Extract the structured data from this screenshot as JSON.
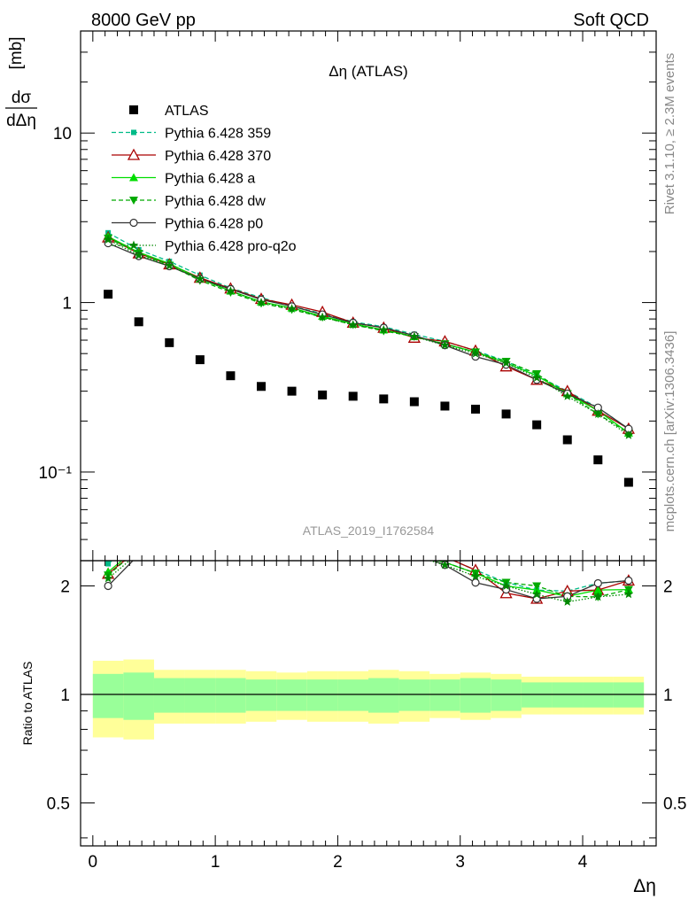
{
  "header": {
    "left": "8000 GeV pp",
    "right": "Soft QCD"
  },
  "side_labels": {
    "rivet": "Rivet 3.1.10, ≥ 2.3M events",
    "site": "mcplots.cern.ch [arXiv:1306.3436]"
  },
  "chart_data": {
    "type": "scatter",
    "title": "Δη (ATLAS)",
    "analysis_label": "ATLAS_2019_I1762584",
    "xlabel": "Δη",
    "ylabel_top": "dσ/dΔη [mb]",
    "ylabel_bottom": "Ratio to ATLAS",
    "xlim": [
      -0.1,
      4.6
    ],
    "ylim": [
      0.03,
      40
    ],
    "ylog": true,
    "ratio_ylim": [
      0.38,
      2.35
    ],
    "ratio_ylog": true,
    "x_ticks": [
      "0",
      "1",
      "2",
      "3",
      "4"
    ],
    "y_ticks": [
      "10⁻¹",
      "1",
      "10"
    ],
    "ratio_ticks": [
      "0.5",
      "1",
      "2"
    ],
    "legend_position": "top-left",
    "x": [
      0.125,
      0.375,
      0.625,
      0.875,
      1.125,
      1.375,
      1.625,
      1.875,
      2.125,
      2.375,
      2.625,
      2.875,
      3.125,
      3.375,
      3.625,
      3.875,
      4.125,
      4.375
    ],
    "x_edges": [
      0.0,
      0.25,
      0.5,
      0.75,
      1.0,
      1.25,
      1.5,
      1.75,
      2.0,
      2.25,
      2.5,
      2.75,
      3.0,
      3.25,
      3.5,
      3.75,
      4.0,
      4.25,
      4.5
    ],
    "data": {
      "name": "ATLAS",
      "color": "#000000",
      "values": [
        1.12,
        0.77,
        0.58,
        0.46,
        0.37,
        0.32,
        0.3,
        0.285,
        0.28,
        0.27,
        0.26,
        0.245,
        0.235,
        0.22,
        0.19,
        0.155,
        0.118,
        0.087
      ],
      "band_inner": [
        0.14,
        0.15,
        0.11,
        0.11,
        0.11,
        0.1,
        0.1,
        0.1,
        0.1,
        0.11,
        0.1,
        0.1,
        0.11,
        0.1,
        0.08,
        0.08,
        0.08,
        0.08
      ],
      "band_outer": [
        0.24,
        0.25,
        0.17,
        0.17,
        0.17,
        0.16,
        0.15,
        0.16,
        0.16,
        0.17,
        0.16,
        0.14,
        0.15,
        0.14,
        0.12,
        0.12,
        0.12,
        0.12
      ],
      "band_inner_color": "#99ff99",
      "band_outer_color": "#ffff99"
    },
    "series": [
      {
        "name": "Pythia 6.428 359",
        "color": "#00bb88",
        "dash": "5,3",
        "marker": "square-small",
        "values": [
          2.58,
          2.05,
          1.75,
          1.45,
          1.22,
          1.07,
          0.95,
          0.86,
          0.77,
          0.72,
          0.65,
          0.59,
          0.52,
          0.45,
          0.37,
          0.3,
          0.24,
          0.18
        ]
      },
      {
        "name": "Pythia 6.428 370",
        "color": "#aa0000",
        "dash": "",
        "marker": "triangle-open",
        "values": [
          2.42,
          1.95,
          1.68,
          1.4,
          1.21,
          1.05,
          0.97,
          0.88,
          0.76,
          0.71,
          0.62,
          0.59,
          0.52,
          0.42,
          0.35,
          0.3,
          0.23,
          0.18
        ]
      },
      {
        "name": "Pythia 6.428 a",
        "color": "#00dd00",
        "dash": "",
        "marker": "triangle-filled",
        "values": [
          2.45,
          1.98,
          1.7,
          1.38,
          1.17,
          1.01,
          0.93,
          0.83,
          0.75,
          0.69,
          0.63,
          0.57,
          0.51,
          0.44,
          0.37,
          0.29,
          0.23,
          0.17
        ]
      },
      {
        "name": "Pythia 6.428 dw",
        "color": "#00aa00",
        "dash": "5,3",
        "marker": "triangle-down-filled",
        "values": [
          2.4,
          1.95,
          1.66,
          1.35,
          1.15,
          0.99,
          0.91,
          0.82,
          0.74,
          0.68,
          0.63,
          0.57,
          0.51,
          0.45,
          0.38,
          0.29,
          0.22,
          0.17
        ]
      },
      {
        "name": "Pythia 6.428 p0",
        "color": "#333333",
        "dash": "",
        "marker": "circle-open",
        "values": [
          2.24,
          1.88,
          1.64,
          1.38,
          1.2,
          1.04,
          0.95,
          0.85,
          0.76,
          0.71,
          0.64,
          0.56,
          0.48,
          0.43,
          0.35,
          0.29,
          0.24,
          0.18
        ]
      },
      {
        "name": "Pythia 6.428 pro-q2o",
        "color": "#008800",
        "dash": "1.5,2",
        "marker": "star",
        "values": [
          2.35,
          1.9,
          1.65,
          1.38,
          1.17,
          1.0,
          0.92,
          0.82,
          0.74,
          0.69,
          0.63,
          0.56,
          0.5,
          0.44,
          0.36,
          0.28,
          0.22,
          0.165
        ]
      }
    ]
  }
}
